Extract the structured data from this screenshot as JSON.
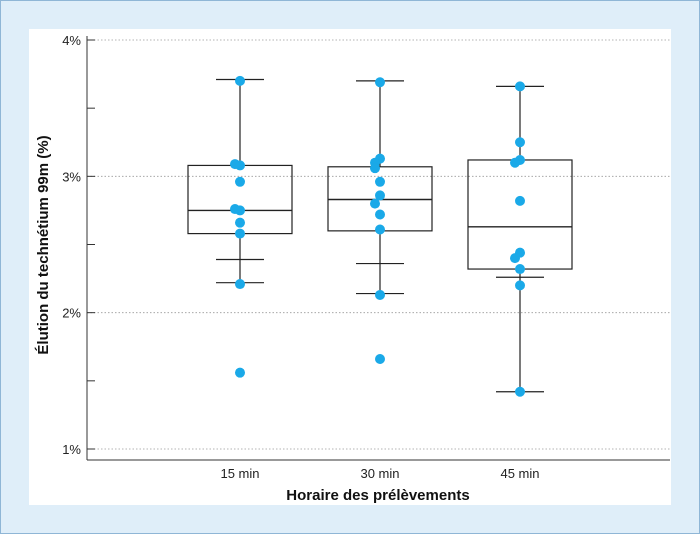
{
  "chart_data": {
    "type": "box",
    "title": "",
    "xlabel": "Horaire des prélèvements",
    "ylabel": "Élution du technétium 99m (%)",
    "ylim": [
      1,
      4
    ],
    "y_ticks": [
      1,
      1.5,
      2,
      2.5,
      3,
      3.5,
      4
    ],
    "y_tick_labels": [
      "1%",
      "",
      "2%",
      "",
      "3%",
      "",
      "4%"
    ],
    "grid": "horizontal dotted at labelled ticks",
    "point_color": "#1aa9e8",
    "categories": [
      "15 min",
      "30 min",
      "45 min"
    ],
    "boxes": [
      {
        "category": "15 min",
        "whisker_low": 2.22,
        "q1": 2.58,
        "median": 2.75,
        "q3": 3.08,
        "whisker_high": 3.71,
        "extra_tick": 2.39,
        "points": [
          3.7,
          3.08,
          3.09,
          2.96,
          2.75,
          2.76,
          2.66,
          2.58,
          2.21,
          1.56
        ]
      },
      {
        "category": "30 min",
        "whisker_low": 2.14,
        "q1": 2.6,
        "median": 2.83,
        "q3": 3.07,
        "whisker_high": 3.7,
        "extra_tick": 2.36,
        "points": [
          3.69,
          3.13,
          3.1,
          3.06,
          2.96,
          2.86,
          2.8,
          2.72,
          2.61,
          2.13,
          1.66
        ]
      },
      {
        "category": "45 min",
        "whisker_low": 1.42,
        "q1": 2.32,
        "median": 2.63,
        "q3": 3.12,
        "whisker_high": 3.66,
        "extra_tick": 2.26,
        "points": [
          3.66,
          3.25,
          3.12,
          3.1,
          2.82,
          2.44,
          2.4,
          2.32,
          2.2,
          1.42
        ]
      }
    ]
  }
}
